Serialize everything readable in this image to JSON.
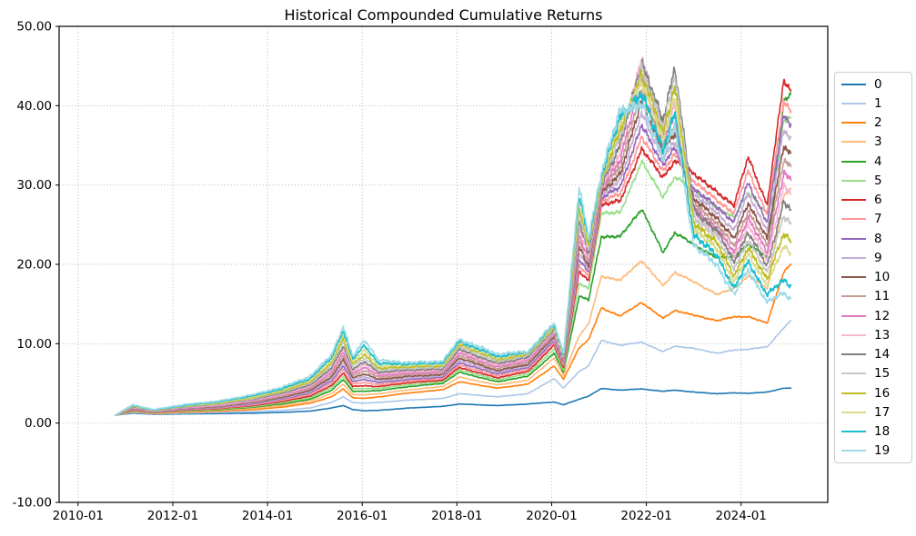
{
  "chart_data": {
    "type": "line",
    "title": "Historical Compounded Cumulative Returns",
    "xlabel": "",
    "ylabel": "",
    "grid": true,
    "legend_position": "outside-right",
    "xlim": [
      2009.6,
      2025.83
    ],
    "ylim": [
      -10,
      50
    ],
    "x_ticks": [
      2010,
      2012,
      2014,
      2016,
      2018,
      2020,
      2022,
      2024
    ],
    "x_tick_labels": [
      "2010-01",
      "2012-01",
      "2014-01",
      "2016-01",
      "2018-01",
      "2020-01",
      "2022-01",
      "2024-01"
    ],
    "y_ticks": [
      -10,
      0,
      10,
      20,
      30,
      40,
      50
    ],
    "y_tick_labels": [
      "-10.00",
      "0.00",
      "10.00",
      "20.00",
      "30.00",
      "40.00",
      "50.00"
    ],
    "x": [
      2010.79,
      2011.15,
      2011.6,
      2012.2,
      2013.0,
      2013.7,
      2014.3,
      2014.9,
      2015.35,
      2015.6,
      2015.8,
      2016.05,
      2016.35,
      2017.0,
      2017.7,
      2018.05,
      2018.85,
      2019.5,
      2020.05,
      2020.25,
      2020.58,
      2020.78,
      2021.05,
      2021.45,
      2021.9,
      2022.35,
      2022.6,
      2023.0,
      2023.5,
      2023.85,
      2024.15,
      2024.55,
      2024.9,
      2025.05
    ],
    "series": [
      {
        "name": "0",
        "color": "#1f77b4",
        "values": [
          1.0,
          1.25,
          1.1,
          1.15,
          1.2,
          1.25,
          1.35,
          1.5,
          1.9,
          2.2,
          1.7,
          1.55,
          1.6,
          1.9,
          2.1,
          2.4,
          2.2,
          2.4,
          2.65,
          2.3,
          3.0,
          3.4,
          4.35,
          4.15,
          4.3,
          4.0,
          4.15,
          3.9,
          3.7,
          3.8,
          3.75,
          3.9,
          4.4,
          4.4
        ]
      },
      {
        "name": "1",
        "color": "#aec7e8",
        "values": [
          1.0,
          1.35,
          1.15,
          1.25,
          1.35,
          1.45,
          1.6,
          1.9,
          2.6,
          3.3,
          2.6,
          2.5,
          2.6,
          2.9,
          3.1,
          3.7,
          3.3,
          3.7,
          5.6,
          4.4,
          6.5,
          7.2,
          10.4,
          9.8,
          10.2,
          9.0,
          9.7,
          9.4,
          8.8,
          9.2,
          9.3,
          9.6,
          12.0,
          12.9
        ]
      },
      {
        "name": "2",
        "color": "#ff7f0e",
        "values": [
          1.0,
          1.45,
          1.2,
          1.35,
          1.5,
          1.7,
          2.0,
          2.5,
          3.3,
          4.3,
          3.2,
          3.1,
          3.3,
          3.8,
          4.2,
          5.2,
          4.4,
          4.9,
          7.2,
          5.5,
          9.5,
          10.5,
          14.5,
          13.5,
          15.2,
          13.2,
          14.2,
          13.6,
          12.9,
          13.4,
          13.4,
          12.6,
          19.0,
          20.0
        ]
      },
      {
        "name": "3",
        "color": "#ffbb78",
        "values": [
          1.0,
          1.5,
          1.25,
          1.42,
          1.6,
          1.85,
          2.2,
          2.75,
          3.7,
          4.9,
          3.6,
          3.55,
          3.7,
          4.2,
          4.6,
          5.8,
          4.8,
          5.4,
          8.2,
          6.0,
          11.0,
          12.5,
          18.5,
          18.0,
          20.5,
          17.3,
          19.0,
          17.8,
          16.2,
          17.0,
          18.5,
          17.0,
          28.5,
          29.5
        ]
      },
      {
        "name": "4",
        "color": "#2ca02c",
        "values": [
          1.0,
          1.55,
          1.3,
          1.5,
          1.7,
          2.0,
          2.4,
          3.0,
          4.1,
          5.5,
          4.0,
          4.0,
          4.1,
          4.6,
          5.0,
          6.4,
          5.2,
          5.9,
          8.8,
          6.4,
          16.0,
          15.5,
          23.5,
          23.5,
          27.0,
          21.5,
          24.0,
          22.5,
          20.8,
          21.0,
          22.5,
          21.0,
          40.5,
          41.5
        ]
      },
      {
        "name": "5",
        "color": "#98df8a",
        "values": [
          1.0,
          1.6,
          1.32,
          1.55,
          1.78,
          2.1,
          2.55,
          3.2,
          4.4,
          5.9,
          4.3,
          4.35,
          4.35,
          4.85,
          5.2,
          6.7,
          5.45,
          6.2,
          9.3,
          6.7,
          17.5,
          17.0,
          26.5,
          26.5,
          33.0,
          28.5,
          31.0,
          29.5,
          27.0,
          26.0,
          29.0,
          26.5,
          38.0,
          38.5
        ]
      },
      {
        "name": "6",
        "color": "#d62728",
        "values": [
          1.0,
          1.65,
          1.35,
          1.6,
          1.85,
          2.2,
          2.7,
          3.4,
          4.7,
          6.3,
          4.6,
          4.7,
          4.6,
          5.1,
          5.4,
          7.0,
          5.7,
          6.5,
          9.8,
          7.0,
          19.0,
          18.0,
          27.5,
          28.0,
          34.5,
          31.0,
          33.0,
          31.5,
          29.0,
          27.5,
          33.5,
          27.5,
          43.2,
          41.8
        ]
      },
      {
        "name": "7",
        "color": "#ff9896",
        "values": [
          1.0,
          1.7,
          1.38,
          1.65,
          1.92,
          2.3,
          2.85,
          3.6,
          5.0,
          6.75,
          4.9,
          5.1,
          4.85,
          5.3,
          5.6,
          7.3,
          5.95,
          6.75,
          10.1,
          7.2,
          19.8,
          18.5,
          27.9,
          28.9,
          36.0,
          31.8,
          33.8,
          30.5,
          28.0,
          26.5,
          31.8,
          26.3,
          40.5,
          39.4
        ]
      },
      {
        "name": "8",
        "color": "#9467bd",
        "values": [
          1.0,
          1.75,
          1.4,
          1.7,
          2.0,
          2.4,
          3.0,
          3.8,
          5.3,
          7.2,
          5.2,
          5.5,
          5.1,
          5.5,
          5.8,
          7.6,
          6.2,
          7.0,
          10.4,
          7.4,
          20.6,
          19.0,
          28.3,
          29.8,
          37.5,
          32.6,
          34.6,
          29.5,
          27.2,
          25.3,
          30.3,
          25.2,
          38.8,
          37.7
        ]
      },
      {
        "name": "9",
        "color": "#c5b0d5",
        "values": [
          1.0,
          1.8,
          1.42,
          1.75,
          2.05,
          2.5,
          3.1,
          3.95,
          5.55,
          7.6,
          5.45,
          5.85,
          5.3,
          5.7,
          5.95,
          7.9,
          6.4,
          7.2,
          10.65,
          7.55,
          21.4,
          19.4,
          28.6,
          30.7,
          39.0,
          33.4,
          35.4,
          28.8,
          26.5,
          24.2,
          29.0,
          24.2,
          37.0,
          36.0
        ]
      },
      {
        "name": "10",
        "color": "#8c564b",
        "values": [
          1.0,
          1.85,
          1.45,
          1.8,
          2.1,
          2.6,
          3.2,
          4.1,
          5.8,
          8.0,
          5.7,
          6.2,
          5.5,
          5.9,
          6.1,
          8.2,
          6.6,
          7.4,
          10.9,
          7.7,
          22.2,
          19.8,
          28.9,
          31.5,
          40.5,
          34.2,
          36.5,
          28.2,
          25.8,
          23.2,
          27.8,
          23.2,
          35.0,
          34.0
        ]
      },
      {
        "name": "11",
        "color": "#c49c94",
        "values": [
          1.0,
          1.9,
          1.48,
          1.85,
          2.18,
          2.7,
          3.35,
          4.3,
          6.1,
          8.45,
          6.0,
          6.6,
          5.75,
          6.1,
          6.3,
          8.5,
          6.85,
          7.65,
          11.15,
          7.85,
          23.0,
          20.2,
          29.2,
          32.4,
          42.0,
          35.0,
          37.5,
          27.6,
          25.1,
          22.3,
          26.8,
          22.3,
          33.2,
          32.3
        ]
      },
      {
        "name": "12",
        "color": "#e377c2",
        "values": [
          1.0,
          1.95,
          1.5,
          1.9,
          2.25,
          2.8,
          3.5,
          4.5,
          6.4,
          8.9,
          6.3,
          7.0,
          6.0,
          6.3,
          6.5,
          8.8,
          7.1,
          7.9,
          11.4,
          8.0,
          23.8,
          20.6,
          29.5,
          33.3,
          43.5,
          35.8,
          38.8,
          27.0,
          24.5,
          21.5,
          25.9,
          21.4,
          31.5,
          30.6
        ]
      },
      {
        "name": "13",
        "color": "#f7b6d2",
        "values": [
          1.0,
          2.0,
          1.52,
          1.95,
          2.3,
          2.9,
          3.6,
          4.65,
          6.65,
          9.3,
          6.55,
          7.35,
          6.2,
          6.5,
          6.65,
          9.05,
          7.3,
          8.1,
          11.6,
          8.1,
          24.6,
          21.0,
          29.8,
          34.2,
          46.3,
          37.0,
          40.0,
          26.4,
          23.9,
          20.8,
          25.0,
          20.6,
          29.8,
          28.9
        ]
      },
      {
        "name": "14",
        "color": "#7f7f7f",
        "values": [
          1.0,
          2.05,
          1.55,
          2.0,
          2.4,
          3.0,
          3.75,
          4.8,
          6.9,
          9.7,
          6.8,
          7.7,
          6.4,
          6.7,
          6.8,
          9.3,
          7.5,
          8.3,
          11.8,
          8.2,
          25.4,
          21.4,
          30.1,
          35.1,
          45.5,
          38.0,
          45.0,
          26.8,
          24.2,
          20.3,
          24.0,
          19.8,
          27.8,
          26.9
        ]
      },
      {
        "name": "15",
        "color": "#c7c7c7",
        "values": [
          1.0,
          2.1,
          1.58,
          2.05,
          2.45,
          3.1,
          3.9,
          5.0,
          7.2,
          10.2,
          7.1,
          8.15,
          6.65,
          6.9,
          7.0,
          9.6,
          7.75,
          8.5,
          12.0,
          8.35,
          26.3,
          21.8,
          30.4,
          36.0,
          44.8,
          37.2,
          44.0,
          26.0,
          23.4,
          19.5,
          23.0,
          19.0,
          26.0,
          25.1
        ]
      },
      {
        "name": "16",
        "color": "#bcbd22",
        "values": [
          1.0,
          2.15,
          1.6,
          2.1,
          2.5,
          3.2,
          4.0,
          5.2,
          7.5,
          10.7,
          7.4,
          8.6,
          6.9,
          7.1,
          7.2,
          9.9,
          8.0,
          8.65,
          12.15,
          8.5,
          27.2,
          22.2,
          30.7,
          36.9,
          44.0,
          36.5,
          42.5,
          25.3,
          22.6,
          18.6,
          22.0,
          18.2,
          23.8,
          22.9
        ]
      },
      {
        "name": "17",
        "color": "#dbdb8d",
        "values": [
          1.0,
          2.2,
          1.62,
          2.15,
          2.6,
          3.3,
          4.15,
          5.4,
          7.8,
          11.2,
          7.7,
          9.2,
          7.2,
          7.3,
          7.4,
          10.1,
          8.2,
          8.8,
          12.3,
          8.6,
          28.0,
          22.6,
          31.0,
          37.8,
          43.0,
          35.8,
          41.0,
          24.6,
          21.8,
          17.8,
          21.2,
          17.4,
          22.2,
          21.4
        ]
      },
      {
        "name": "18",
        "color": "#17becf",
        "values": [
          1.0,
          2.25,
          1.65,
          2.2,
          2.7,
          3.45,
          4.3,
          5.6,
          8.2,
          11.7,
          8.05,
          9.8,
          7.5,
          7.45,
          7.6,
          10.3,
          8.4,
          8.9,
          12.45,
          8.7,
          28.8,
          23.0,
          31.2,
          38.6,
          41.5,
          34.5,
          39.0,
          23.8,
          21.0,
          17.0,
          20.3,
          16.2,
          18.0,
          17.3
        ]
      },
      {
        "name": "19",
        "color": "#9edae5",
        "values": [
          1.0,
          2.3,
          1.7,
          2.3,
          2.8,
          3.6,
          4.5,
          5.9,
          8.6,
          12.2,
          8.4,
          10.5,
          7.9,
          7.6,
          7.8,
          10.55,
          8.7,
          9.0,
          12.6,
          8.85,
          29.6,
          23.5,
          31.5,
          39.5,
          40.0,
          33.5,
          37.5,
          22.5,
          19.8,
          16.2,
          19.3,
          15.2,
          16.4,
          15.7
        ]
      }
    ],
    "style": {
      "grid_color": "#b0b0b0",
      "spine_color": "#000000",
      "text_color": "#000000",
      "background": "#ffffff",
      "line_width": 1.6
    }
  }
}
